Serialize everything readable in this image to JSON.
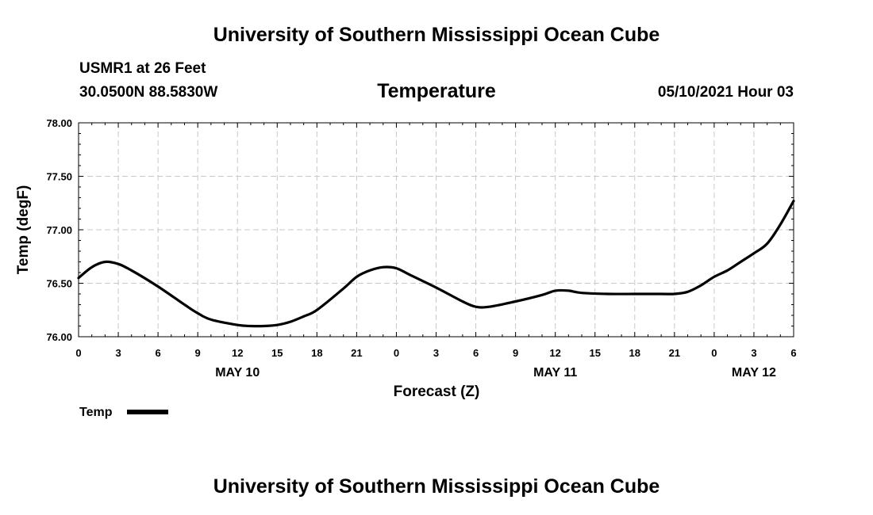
{
  "header": {
    "title": "University of Southern Mississippi Ocean Cube",
    "station": "USMR1 at 26 Feet",
    "coordinates": "30.0500N  88.5830W",
    "chart_title": "Temperature",
    "timestamp": "05/10/2021 Hour 03"
  },
  "footer": {
    "title": "University of Southern Mississippi Ocean Cube"
  },
  "colors": {
    "line": "#000000",
    "grid": "#c8c8c8"
  },
  "chart_data": {
    "type": "line",
    "title": "Temperature",
    "xlabel": "Forecast (Z)",
    "ylabel": "Temp (degF)",
    "ylim": [
      76.0,
      78.0
    ],
    "xlim": [
      0,
      54
    ],
    "x_unit": "hours since May 10 00Z",
    "yticks": [
      76.0,
      76.5,
      77.0,
      77.5,
      78.0
    ],
    "ytick_labels": [
      "76.00",
      "76.50",
      "77.00",
      "77.50",
      "78.00"
    ],
    "xticks": [
      0,
      3,
      6,
      9,
      12,
      15,
      18,
      21,
      24,
      27,
      30,
      33,
      36,
      39,
      42,
      45,
      48,
      51,
      54
    ],
    "xtick_labels": [
      "0",
      "3",
      "6",
      "9",
      "12",
      "15",
      "18",
      "21",
      "0",
      "3",
      "6",
      "9",
      "12",
      "15",
      "18",
      "21",
      "0",
      "3",
      "6"
    ],
    "date_labels": [
      {
        "x": 12,
        "label": "MAY 10"
      },
      {
        "x": 36,
        "label": "MAY 11"
      },
      {
        "x": 51,
        "label": "MAY 12"
      }
    ],
    "grid": true,
    "legend": {
      "position": "bottom-left",
      "entries": [
        "Temp"
      ]
    },
    "series": [
      {
        "name": "Temp",
        "x": [
          0,
          1,
          2,
          3,
          4,
          6,
          8,
          9,
          10,
          12,
          13,
          14,
          15,
          16,
          17,
          18,
          20,
          21,
          22,
          23,
          24,
          25,
          27,
          29,
          30,
          31,
          33,
          35,
          36,
          37,
          38,
          40,
          42,
          44,
          45,
          46,
          47,
          48,
          49,
          50,
          51,
          52,
          53,
          54
        ],
        "values": [
          76.55,
          76.65,
          76.7,
          76.68,
          76.62,
          76.47,
          76.3,
          76.22,
          76.16,
          76.11,
          76.1,
          76.1,
          76.11,
          76.14,
          76.19,
          76.25,
          76.45,
          76.56,
          76.62,
          76.65,
          76.64,
          76.58,
          76.46,
          76.33,
          76.28,
          76.28,
          76.33,
          76.39,
          76.43,
          76.43,
          76.41,
          76.4,
          76.4,
          76.4,
          76.4,
          76.42,
          76.48,
          76.56,
          76.62,
          76.7,
          76.78,
          76.87,
          77.05,
          77.27
        ]
      }
    ]
  }
}
